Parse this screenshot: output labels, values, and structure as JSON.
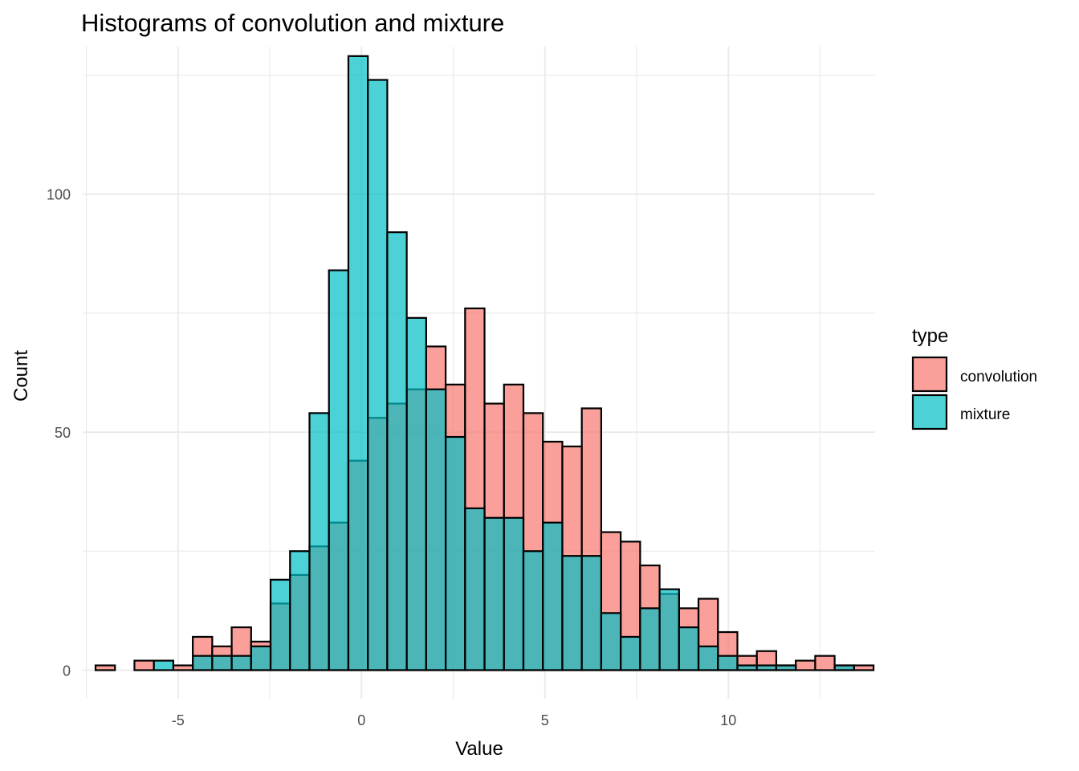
{
  "chart_data": {
    "type": "bar",
    "subtype": "histogram-overlaid",
    "title": "Histograms of convolution and mixture",
    "xlabel": "Value",
    "ylabel": "Count",
    "xlim": [
      -7.6,
      14.0
    ],
    "ylim": [
      -6,
      131
    ],
    "x_ticks": [
      -5,
      0,
      5,
      10
    ],
    "y_ticks": [
      0,
      50,
      100
    ],
    "x_tick_labels": [
      "-5",
      "0",
      "5",
      "10"
    ],
    "y_tick_labels": [
      "0",
      "50",
      "100"
    ],
    "grid": true,
    "legend": {
      "title": "type",
      "position": "right",
      "entries": [
        "convolution",
        "mixture"
      ]
    },
    "bin_width": 0.5302,
    "bin_start": -7.25,
    "series": [
      {
        "name": "convolution",
        "color": "#F8766D",
        "values": [
          1,
          0,
          2,
          0,
          1,
          7,
          5,
          9,
          6,
          14,
          20,
          26,
          31,
          44,
          53,
          56,
          59,
          68,
          60,
          76,
          56,
          60,
          54,
          48,
          47,
          55,
          29,
          27,
          22,
          16,
          13,
          15,
          8,
          3,
          4,
          1,
          2,
          3,
          1,
          1
        ]
      },
      {
        "name": "mixture",
        "color": "#00BFC4",
        "values": [
          0,
          0,
          0,
          2,
          0,
          3,
          3,
          3,
          5,
          19,
          25,
          54,
          84,
          129,
          124,
          92,
          74,
          59,
          49,
          34,
          32,
          32,
          25,
          31,
          24,
          24,
          12,
          7,
          13,
          17,
          9,
          5,
          3,
          1,
          1,
          1,
          0,
          0,
          1,
          0
        ]
      }
    ]
  }
}
